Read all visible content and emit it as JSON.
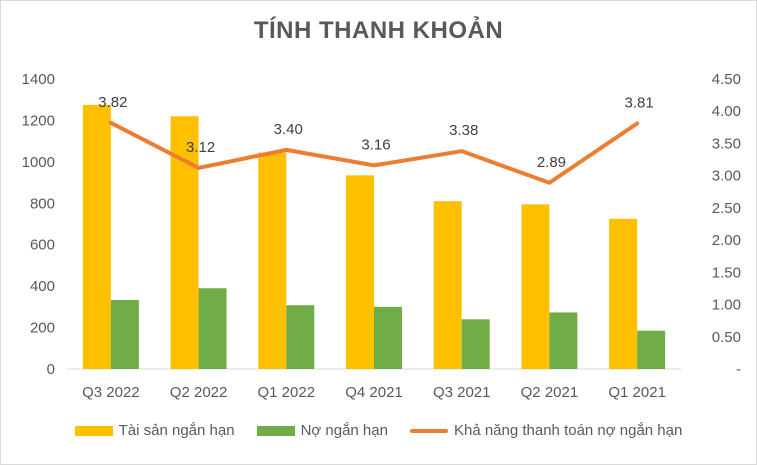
{
  "chart_data": {
    "type": "bar",
    "title": "TÍNH THANH KHOẢN",
    "categories": [
      "Q3 2022",
      "Q2 2022",
      "Q1 2022",
      "Q4 2021",
      "Q3 2021",
      "Q2 2021",
      "Q1 2021"
    ],
    "series": [
      {
        "name": "Tài sản ngắn hạn",
        "type": "bar",
        "axis": "left",
        "color": "#FFC000",
        "values": [
          1275,
          1220,
          1045,
          935,
          810,
          795,
          725
        ]
      },
      {
        "name": "Nợ ngắn hạn",
        "type": "bar",
        "axis": "left",
        "color": "#70AD47",
        "values": [
          333,
          390,
          308,
          300,
          240,
          273,
          185
        ]
      },
      {
        "name": "Khả năng thanh toán nợ ngắn hạn",
        "type": "line",
        "axis": "right",
        "color": "#ED7D31",
        "values": [
          3.82,
          3.12,
          3.4,
          3.16,
          3.38,
          2.89,
          3.81
        ]
      }
    ],
    "line_labels": [
      "3.82",
      "3.12",
      "3.40",
      "3.16",
      "3.38",
      "2.89",
      "3.81"
    ],
    "y_left": {
      "min": 0,
      "max": 1400,
      "ticks": [
        "0",
        "200",
        "400",
        "600",
        "800",
        "1000",
        "1200",
        "1400"
      ]
    },
    "y_right": {
      "min": 0,
      "max": 4.5,
      "ticks": [
        "-",
        "0.50",
        "1.00",
        "1.50",
        "2.00",
        "2.50",
        "3.00",
        "3.50",
        "4.00",
        "4.50"
      ]
    },
    "grid": false,
    "legend_position": "bottom"
  }
}
